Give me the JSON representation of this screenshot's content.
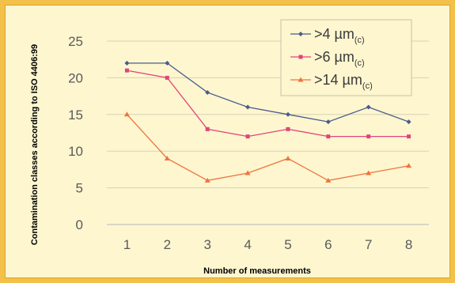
{
  "chart_data": {
    "type": "line",
    "title": "",
    "xlabel": "Number of measurements",
    "ylabel": "Contamination classes according to ISO 4406:99",
    "x": [
      1,
      2,
      3,
      4,
      5,
      6,
      7,
      8
    ],
    "ylim": [
      0,
      25
    ],
    "yticks": [
      0,
      5,
      10,
      15,
      20,
      25
    ],
    "grid": true,
    "legend_position": "top-right",
    "series": [
      {
        "name": ">4 µm",
        "subscript": "(c)",
        "color": "#4a5b8c",
        "marker": "diamond",
        "values": [
          22,
          22,
          18,
          16,
          15,
          14,
          16,
          14
        ]
      },
      {
        "name": ">6 µm",
        "subscript": "(c)",
        "color": "#e0457a",
        "marker": "square",
        "values": [
          21,
          20,
          13,
          12,
          13,
          12,
          12,
          12
        ]
      },
      {
        "name": ">14  µm",
        "subscript": "(c)",
        "color": "#ee7440",
        "marker": "triangle",
        "values": [
          15,
          9,
          6,
          7,
          9,
          6,
          7,
          8
        ]
      }
    ]
  }
}
